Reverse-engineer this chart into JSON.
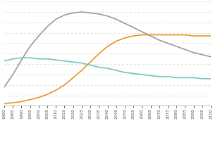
{
  "years": [
    1980,
    1985,
    1990,
    1995,
    2000,
    2005,
    2010,
    2015,
    2020,
    2025,
    2030,
    2035,
    2040,
    2045,
    2050,
    2055,
    2060,
    2065,
    2070,
    2075,
    2080,
    2085,
    2090,
    2095,
    2100
  ],
  "line_gray": [
    18,
    30,
    44,
    57,
    67,
    76,
    83,
    87,
    89,
    90,
    89,
    88,
    86,
    83,
    79,
    75,
    71,
    67,
    63,
    60,
    57,
    54,
    51,
    49,
    47
  ],
  "line_teal": [
    43,
    45,
    46,
    46,
    45,
    45,
    44,
    43,
    42,
    41,
    39,
    37,
    36,
    34,
    32,
    31,
    30,
    29,
    28,
    28,
    27,
    27,
    27,
    26,
    26
  ],
  "line_orange": [
    2,
    3,
    4,
    6,
    8,
    11,
    15,
    20,
    27,
    34,
    42,
    50,
    57,
    62,
    65,
    67,
    68,
    68,
    68,
    68,
    68,
    68,
    67,
    67,
    67
  ],
  "color_gray": "#9a9a9a",
  "color_teal": "#72c4c0",
  "color_orange": "#e8932a",
  "background": "#ffffff",
  "grid_color": "#cccccc",
  "ylim": [
    0,
    100
  ],
  "xlim": [
    1980,
    2100
  ],
  "line_width": 1.2,
  "grid_linewidth": 0.5,
  "num_gridlines": 10
}
